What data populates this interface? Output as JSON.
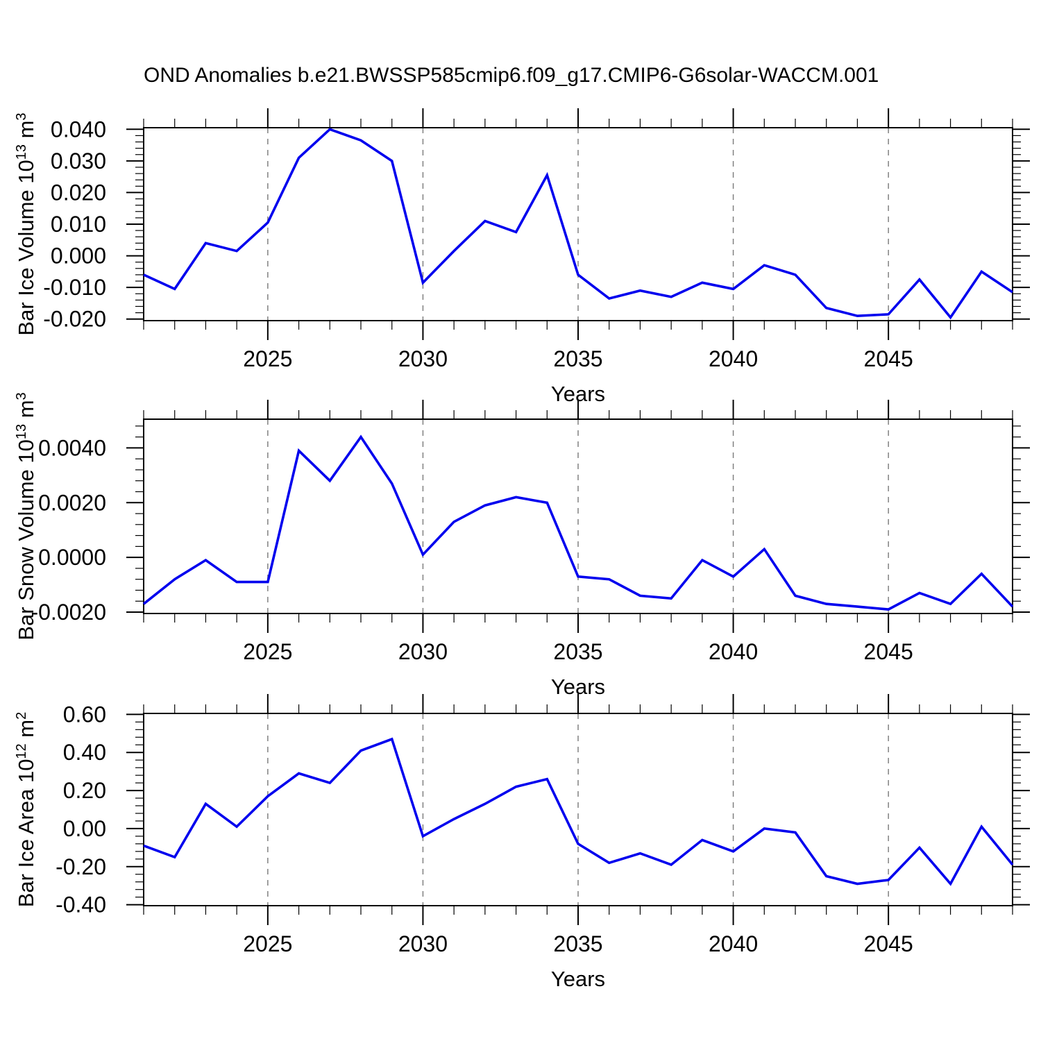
{
  "title": "OND Anomalies b.e21.BWSSP585cmip6.f09_g17.CMIP6-G6solar-WACCM.001",
  "xlabel": "Years",
  "colors": {
    "line": "#0000ee",
    "grid": "#808080",
    "frame": "#000000",
    "text": "#000000"
  },
  "x_axis": {
    "xlim": [
      2021,
      2049
    ],
    "major_ticks": [
      2025,
      2030,
      2035,
      2040,
      2045
    ],
    "major_tick_labels": [
      "2025",
      "2030",
      "2035",
      "2040",
      "2045"
    ],
    "minor_step_years": 1
  },
  "chart_data": [
    {
      "type": "line",
      "panel": "ice-volume",
      "ylabel_parts": {
        "main": "Bar Ice Volume 10",
        "sup1": "13",
        "unit": " m",
        "sup2": "3"
      },
      "ylim": [
        -0.0205,
        0.0405
      ],
      "yticks": [
        0.04,
        0.03,
        0.02,
        0.01,
        0.0,
        -0.01,
        -0.02
      ],
      "ytick_labels": [
        "0.040",
        "0.030",
        "0.020",
        "0.010",
        "0.000",
        "-0.010",
        "-0.020"
      ],
      "y_minor_step": 0.002,
      "x": [
        2021,
        2022,
        2023,
        2024,
        2025,
        2026,
        2027,
        2028,
        2029,
        2030,
        2031,
        2032,
        2033,
        2034,
        2035,
        2036,
        2037,
        2038,
        2039,
        2040,
        2041,
        2042,
        2043,
        2044,
        2045,
        2046,
        2047,
        2048,
        2049
      ],
      "values": [
        -0.006,
        -0.0105,
        0.004,
        0.0015,
        0.0105,
        0.031,
        0.04,
        0.0365,
        0.03,
        -0.0085,
        0.0015,
        0.011,
        0.0075,
        0.0255,
        -0.006,
        -0.0135,
        -0.011,
        -0.013,
        -0.0085,
        -0.0105,
        -0.003,
        -0.006,
        -0.0165,
        -0.019,
        -0.0185,
        -0.0075,
        -0.0195,
        -0.005,
        -0.0115
      ]
    },
    {
      "type": "line",
      "panel": "snow-volume",
      "ylabel_parts": {
        "main": "Bar Snow Volume 10",
        "sup1": "13",
        "unit": " m",
        "sup2": "3"
      },
      "ylim": [
        -0.00205,
        0.00505
      ],
      "yticks": [
        0.004,
        0.002,
        0.0,
        -0.002
      ],
      "ytick_labels": [
        "0.0040",
        "0.0020",
        "0.0000",
        "-0.0020"
      ],
      "y_minor_step": 0.0004,
      "x": [
        2021,
        2022,
        2023,
        2024,
        2025,
        2026,
        2027,
        2028,
        2029,
        2030,
        2031,
        2032,
        2033,
        2034,
        2035,
        2036,
        2037,
        2038,
        2039,
        2040,
        2041,
        2042,
        2043,
        2044,
        2045,
        2046,
        2047,
        2048,
        2049
      ],
      "values": [
        -0.0017,
        -0.0008,
        -0.0001,
        -0.0009,
        -0.0009,
        0.0039,
        0.0028,
        0.0044,
        0.0027,
        0.0001,
        0.0013,
        0.0019,
        0.0022,
        0.002,
        -0.0007,
        -0.0008,
        -0.0014,
        -0.0015,
        -0.0001,
        -0.0007,
        0.0003,
        -0.0014,
        -0.0017,
        -0.0018,
        -0.0019,
        -0.0013,
        -0.0017,
        -0.0006,
        -0.0018
      ]
    },
    {
      "type": "line",
      "panel": "ice-area",
      "ylabel_parts": {
        "main": "Bar Ice Area 10",
        "sup1": "12",
        "unit": " m",
        "sup2": "2"
      },
      "ylim": [
        -0.405,
        0.605
      ],
      "yticks": [
        0.6,
        0.4,
        0.2,
        0.0,
        -0.2,
        -0.4
      ],
      "ytick_labels": [
        "0.60",
        "0.40",
        "0.20",
        "0.00",
        "-0.20",
        "-0.40"
      ],
      "y_minor_step": 0.04,
      "x": [
        2021,
        2022,
        2023,
        2024,
        2025,
        2026,
        2027,
        2028,
        2029,
        2030,
        2031,
        2032,
        2033,
        2034,
        2035,
        2036,
        2037,
        2038,
        2039,
        2040,
        2041,
        2042,
        2043,
        2044,
        2045,
        2046,
        2047,
        2048,
        2049
      ],
      "values": [
        -0.09,
        -0.15,
        0.13,
        0.01,
        0.17,
        0.29,
        0.24,
        0.41,
        0.47,
        -0.04,
        0.05,
        0.13,
        0.22,
        0.26,
        -0.08,
        -0.18,
        -0.13,
        -0.19,
        -0.06,
        -0.12,
        0.0,
        -0.02,
        -0.25,
        -0.29,
        -0.27,
        -0.1,
        -0.29,
        0.01,
        -0.19
      ]
    }
  ]
}
